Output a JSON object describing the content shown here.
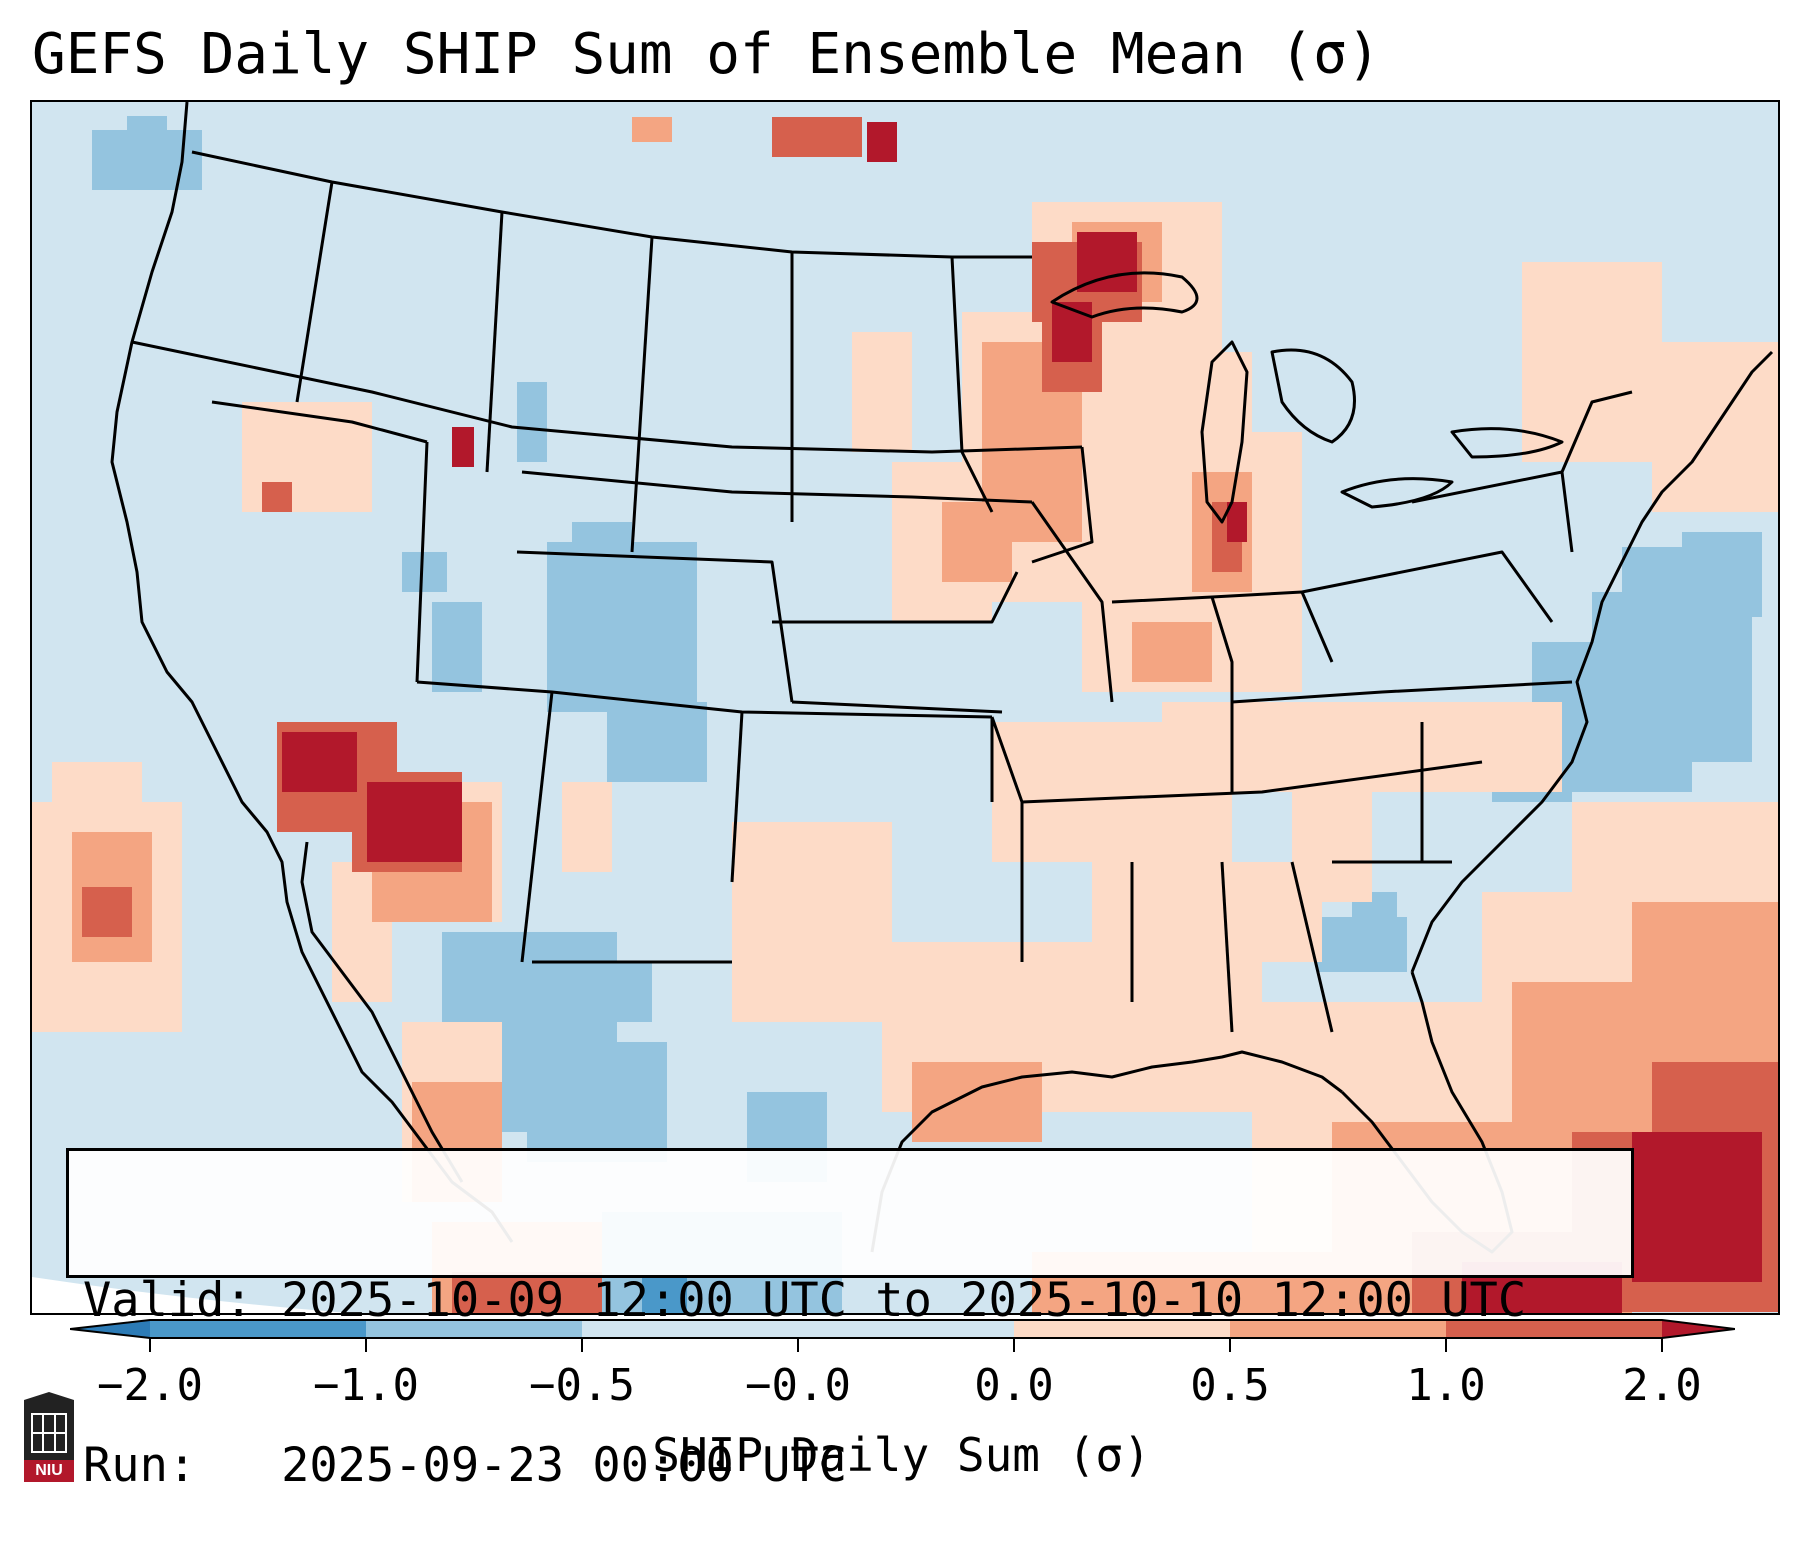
{
  "title": "GEFS Daily SHIP Sum of Ensemble Mean (σ)",
  "info": {
    "valid_line": "Valid: 2025-10-09 12:00 UTC to 2025-10-10 12:00 UTC",
    "run_line": "Run:   2025-09-23 00:00 UTC"
  },
  "colorbar": {
    "label": "SHIP Daily Sum (σ)",
    "ticks": [
      "−2.0",
      "−1.0",
      "−0.5",
      "−0.0",
      "0.0",
      "0.5",
      "1.0",
      "2.0"
    ],
    "colors": [
      "#2c7bb6",
      "#4a98c9",
      "#94c4df",
      "#d1e5f0",
      "#fddbc7",
      "#f4a582",
      "#d6604d",
      "#b2182b"
    ],
    "extend": "both"
  },
  "map": {
    "background_color": "#d1e5f0",
    "region": "Contiguous United States",
    "projection": "Lambert Conformal"
  },
  "logo": {
    "text": "NIU"
  }
}
